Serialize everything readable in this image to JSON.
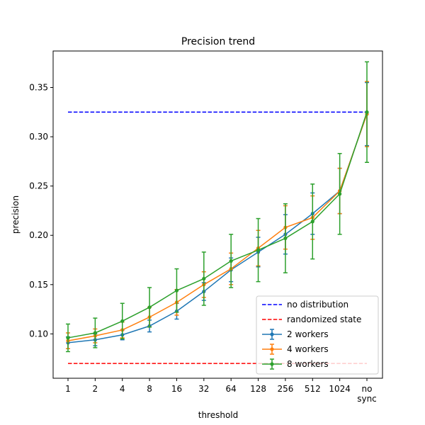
{
  "chart_data": {
    "type": "line",
    "title": "Precision trend",
    "xlabel": "threshold",
    "ylabel": "precision",
    "categories": [
      "1",
      "2",
      "4",
      "8",
      "16",
      "32",
      "64",
      "128",
      "256",
      "512",
      "1024",
      "no\nsync"
    ],
    "ylim": [
      0.055,
      0.387
    ],
    "yticks": [
      0.1,
      0.15,
      0.2,
      0.25,
      0.3,
      0.35
    ],
    "ytick_labels": [
      "0.10",
      "0.15",
      "0.20",
      "0.25",
      "0.30",
      "0.35"
    ],
    "grid": false,
    "legend_position": "lower-right",
    "reference_lines": [
      {
        "name": "no distribution",
        "value": 0.325,
        "color": "#0000ff",
        "style": "dashed"
      },
      {
        "name": "randomized state",
        "value": 0.07,
        "color": "#ff0000",
        "style": "dashed"
      }
    ],
    "series": [
      {
        "name": "2 workers",
        "color": "#1f77b4",
        "values": [
          0.091,
          0.094,
          0.099,
          0.108,
          0.123,
          0.143,
          0.165,
          0.183,
          0.201,
          0.222,
          0.245,
          0.323
        ],
        "errors": [
          0.006,
          0.006,
          0.005,
          0.006,
          0.008,
          0.009,
          0.012,
          0.015,
          0.02,
          0.021,
          0.023,
          0.032
        ]
      },
      {
        "name": "4 workers",
        "color": "#ff7f0e",
        "values": [
          0.093,
          0.098,
          0.104,
          0.117,
          0.132,
          0.15,
          0.166,
          0.187,
          0.208,
          0.218,
          0.245,
          0.323
        ],
        "errors": [
          0.008,
          0.007,
          0.008,
          0.01,
          0.013,
          0.013,
          0.016,
          0.018,
          0.022,
          0.022,
          0.023,
          0.033
        ]
      },
      {
        "name": "8 workers",
        "color": "#2ca02c",
        "values": [
          0.096,
          0.101,
          0.113,
          0.127,
          0.144,
          0.156,
          0.174,
          0.185,
          0.197,
          0.214,
          0.242,
          0.325
        ],
        "errors": [
          0.014,
          0.015,
          0.018,
          0.02,
          0.022,
          0.027,
          0.027,
          0.032,
          0.035,
          0.038,
          0.041,
          0.051
        ]
      }
    ]
  }
}
